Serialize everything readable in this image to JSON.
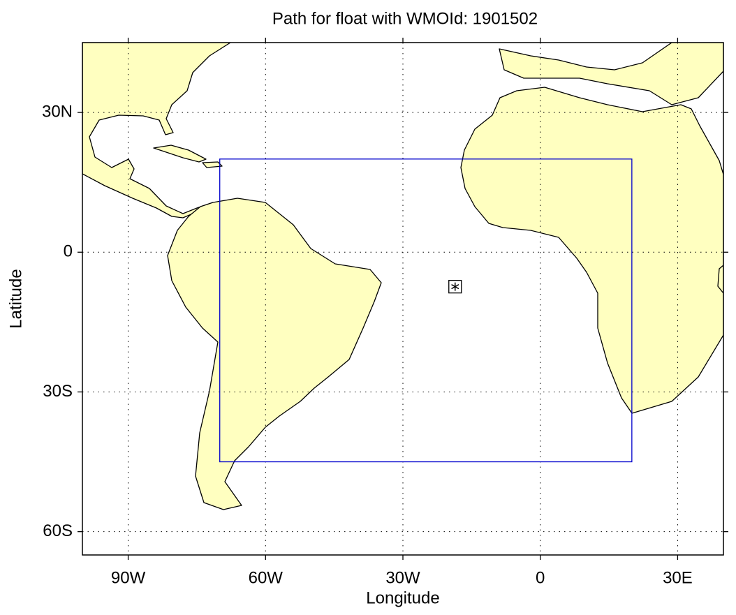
{
  "chart_data": {
    "type": "map",
    "title": "Path for float with WMOId: 1901502",
    "xlabel": "Longitude",
    "ylabel": "Latitude",
    "xlim": [
      -100,
      40
    ],
    "ylim": [
      -65,
      45
    ],
    "xticks": [
      {
        "value": -90,
        "label": "90W"
      },
      {
        "value": -60,
        "label": "60W"
      },
      {
        "value": -30,
        "label": "30W"
      },
      0,
      {
        "value": 30,
        "label": "30E"
      }
    ],
    "yticks": [
      {
        "value": 30,
        "label": "30N"
      },
      0,
      {
        "value": -30,
        "label": "30S"
      },
      {
        "value": -60,
        "label": "60S"
      }
    ],
    "grid": true,
    "land_color": "#ffffc0",
    "region": {
      "lon": [
        -70,
        20
      ],
      "lat": [
        -45,
        20
      ],
      "color": "#0000cc"
    },
    "x": [
      -18.6
    ],
    "values": [
      -7.4
    ],
    "color": "#000000"
  }
}
